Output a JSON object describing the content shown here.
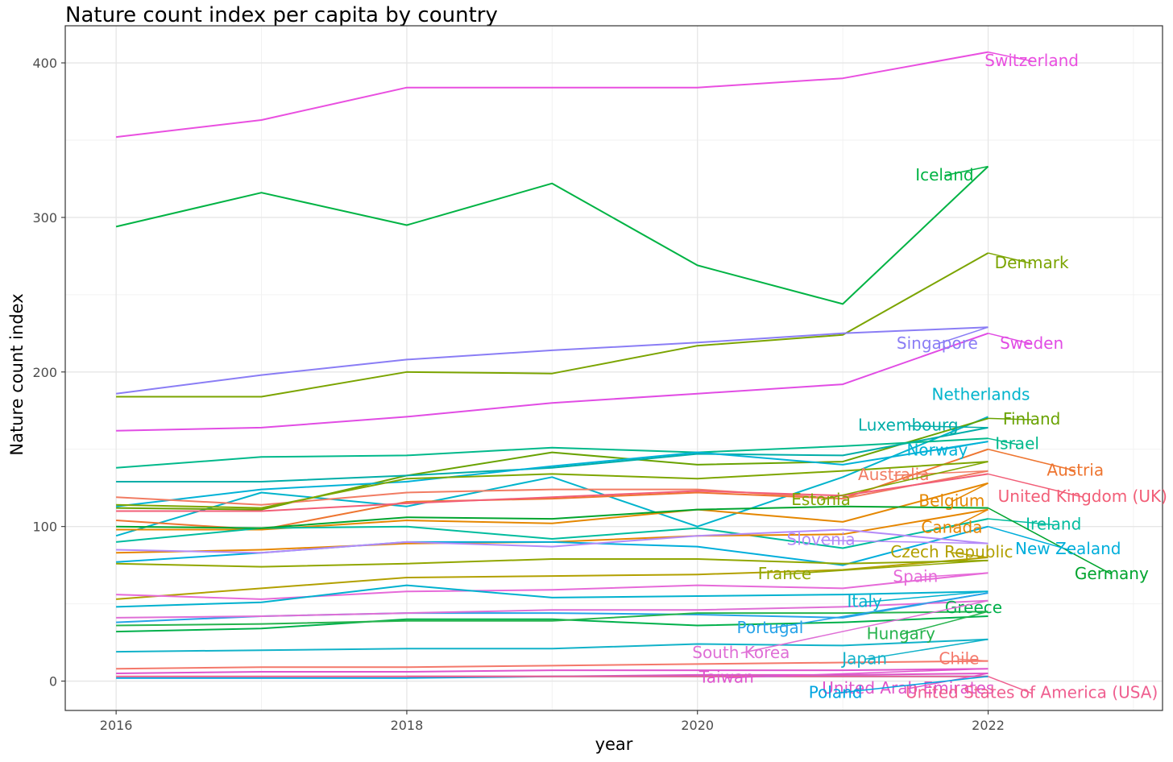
{
  "chart_data": {
    "type": "line",
    "title": "Nature count index per capita by country",
    "xlabel": "year",
    "ylabel": "Nature count index",
    "xlim": [
      2015.65,
      2023.2
    ],
    "ylim": [
      -19,
      424
    ],
    "x_ticks": [
      2016,
      2018,
      2020,
      2022
    ],
    "y_ticks": [
      0,
      100,
      200,
      300,
      400
    ],
    "x_tick_labels": [
      "2016",
      "2018",
      "2020",
      "2022"
    ],
    "y_tick_labels": [
      "0",
      "100",
      "200",
      "300",
      "400"
    ],
    "grid": true,
    "legend": "direct labels at line ends",
    "x": [
      2016,
      2017,
      2018,
      2019,
      2020,
      2021,
      2022
    ],
    "series": [
      {
        "name": "Switzerland",
        "color": "#e94fe0",
        "values": [
          352,
          363,
          384,
          384,
          384,
          390,
          407
        ],
        "label_at": [
          2022.3,
          398
        ]
      },
      {
        "name": "Iceland",
        "color": "#00b344",
        "values": [
          294,
          316,
          295,
          322,
          269,
          244,
          333
        ],
        "label_at": [
          2021.7,
          324
        ]
      },
      {
        "name": "Denmark",
        "color": "#7ba400",
        "values": [
          184,
          184,
          200,
          199,
          217,
          224,
          277
        ],
        "label_at": [
          2022.3,
          267
        ]
      },
      {
        "name": "Singapore",
        "color": "#8a7df5",
        "values": [
          186,
          198,
          208,
          214,
          219,
          225,
          229
        ],
        "label_at": [
          2021.65,
          215
        ]
      },
      {
        "name": "Sweden",
        "color": "#e14ce4",
        "values": [
          162,
          164,
          171,
          180,
          186,
          192,
          225
        ],
        "label_at": [
          2022.3,
          215
        ]
      },
      {
        "name": "Netherlands",
        "color": "#00b4cc",
        "values": [
          94,
          122,
          113,
          132,
          100,
          132,
          171
        ],
        "label_at": [
          2021.95,
          182
        ]
      },
      {
        "name": "Finland",
        "color": "#69a200",
        "values": [
          112,
          111,
          133,
          148,
          140,
          142,
          170
        ],
        "label_at": [
          2022.3,
          166
        ]
      },
      {
        "name": "Luxembourg",
        "color": "#00ada8",
        "values": [
          129,
          129,
          133,
          138,
          147,
          146,
          164
        ],
        "label_at": [
          2021.45,
          162
        ]
      },
      {
        "name": "Israel",
        "color": "#00b98b",
        "values": [
          138,
          145,
          146,
          151,
          148,
          152,
          157
        ],
        "label_at": [
          2022.2,
          150
        ]
      },
      {
        "name": "Norway",
        "color": "#00b2d7",
        "values": [
          113,
          124,
          129,
          139,
          148,
          140,
          155
        ],
        "label_at": [
          2021.65,
          146
        ]
      },
      {
        "name": "Austria",
        "color": "#ee7530",
        "values": [
          104,
          98,
          116,
          118,
          122,
          118,
          150
        ],
        "label_at": [
          2022.6,
          133
        ]
      },
      {
        "name": "Australia",
        "color": "#f17c63",
        "values": [
          119,
          114,
          122,
          124,
          124,
          118,
          136
        ],
        "label_at": [
          2021.35,
          130
        ]
      },
      {
        "name": "United Kingdom (UK)",
        "color": "#f25e77",
        "values": [
          110,
          110,
          115,
          119,
          123,
          120,
          134
        ],
        "label_at": [
          2022.65,
          116
        ]
      },
      {
        "name": "Estonia",
        "color": "#7ea600",
        "values": [
          114,
          112,
          131,
          134,
          131,
          136,
          142
        ],
        "label_at": [
          2020.85,
          114
        ]
      },
      {
        "name": "Belgium",
        "color": "#e58700",
        "values": [
          98,
          98,
          104,
          102,
          111,
          103,
          128
        ],
        "label_at": [
          2021.75,
          113
        ]
      },
      {
        "name": "Ireland",
        "color": "#00bc9e",
        "values": [
          90,
          99,
          100,
          92,
          99,
          86,
          105
        ],
        "label_at": [
          2022.45,
          98
        ]
      },
      {
        "name": "Canada",
        "color": "#e68600",
        "values": [
          83,
          85,
          89,
          90,
          94,
          95,
          111
        ],
        "label_at": [
          2021.75,
          96
        ]
      },
      {
        "name": "Germany",
        "color": "#00a42e",
        "values": [
          100,
          99,
          106,
          105,
          111,
          113,
          112
        ],
        "label_at": [
          2022.85,
          66
        ]
      },
      {
        "name": "New Zealand",
        "color": "#00aedb",
        "values": [
          77,
          83,
          90,
          90,
          87,
          75,
          100
        ],
        "label_at": [
          2022.55,
          82
        ]
      },
      {
        "name": "Slovenia",
        "color": "#b48af8",
        "values": [
          85,
          83,
          90,
          87,
          94,
          98,
          89
        ],
        "label_at": [
          2020.85,
          88
        ]
      },
      {
        "name": "Czech Republic",
        "color": "#b2a000",
        "values": [
          53,
          60,
          67,
          68,
          69,
          72,
          80
        ],
        "label_at": [
          2021.75,
          80
        ]
      },
      {
        "name": "France",
        "color": "#91a600",
        "values": [
          76,
          74,
          76,
          79,
          79,
          76,
          78
        ],
        "label_at": [
          2020.6,
          66
        ]
      },
      {
        "name": "Spain",
        "color": "#e66ad9",
        "values": [
          56,
          53,
          58,
          59,
          62,
          60,
          70
        ],
        "label_at": [
          2021.5,
          64
        ]
      },
      {
        "name": "Italy",
        "color": "#00b1cf",
        "values": [
          48,
          51,
          62,
          54,
          55,
          56,
          58
        ],
        "label_at": [
          2021.15,
          48
        ]
      },
      {
        "name": "Greece",
        "color": "#00b04b",
        "values": [
          32,
          34,
          40,
          40,
          36,
          38,
          42
        ],
        "label_at": [
          2021.9,
          44
        ]
      },
      {
        "name": "Portugal",
        "color": "#26a3e8",
        "values": [
          38,
          42,
          44,
          44,
          43,
          41,
          57
        ],
        "label_at": [
          2020.5,
          31
        ]
      },
      {
        "name": "Hungary",
        "color": "#26b34d",
        "values": [
          36,
          37,
          39,
          39,
          44,
          44,
          45
        ],
        "label_at": [
          2021.4,
          27
        ]
      },
      {
        "name": "South Korea",
        "color": "#df6fd6",
        "values": [
          41,
          42,
          44,
          46,
          46,
          48,
          52
        ],
        "label_at": [
          2020.3,
          15
        ]
      },
      {
        "name": "Japan",
        "color": "#11b2c9",
        "values": [
          19,
          20,
          21,
          21,
          24,
          23,
          27
        ],
        "label_at": [
          2021.15,
          11
        ]
      },
      {
        "name": "Chile",
        "color": "#f4786a",
        "values": [
          8,
          9,
          9,
          10,
          11,
          12,
          13
        ],
        "label_at": [
          2021.8,
          11
        ]
      },
      {
        "name": "Taiwan",
        "color": "#df55ce",
        "values": [
          5,
          6,
          6,
          7,
          7,
          7,
          8
        ],
        "label_at": [
          2020.2,
          -1
        ]
      },
      {
        "name": "United Arab Emirates",
        "color": "#e054c9",
        "values": [
          null,
          null,
          3,
          3,
          4,
          4,
          5
        ],
        "label_at": [
          2021.45,
          -8
        ]
      },
      {
        "name": "Poland",
        "color": "#00a4e0",
        "values": [
          2,
          2,
          2,
          3,
          3,
          3,
          3
        ],
        "label_at": [
          2020.95,
          -11
        ]
      },
      {
        "name": "United States of America (USA)",
        "color": "#ef5f90",
        "values": [
          3,
          3,
          3,
          3,
          3,
          3,
          3
        ],
        "label_at": [
          2022.3,
          -11
        ]
      }
    ]
  }
}
